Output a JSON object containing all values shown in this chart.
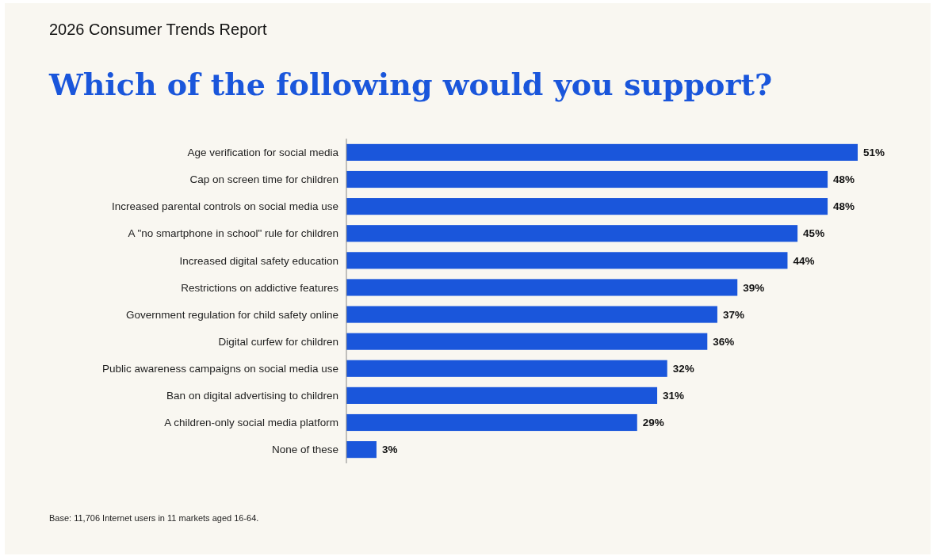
{
  "chart_data": {
    "type": "bar",
    "orientation": "horizontal",
    "subtitle": "2026 Consumer Trends Report",
    "title": "Which of the following would you support?",
    "categories": [
      "Age verification for social media",
      "Cap on screen time for children",
      "Increased parental controls on social media use",
      "A \"no smartphone in school\" rule for children",
      "Increased digital safety education",
      "Restrictions on addictive features",
      "Government regulation for child safety online",
      "Digital curfew for children",
      "Public awareness campaigns on social media use",
      "Ban on digital advertising to children",
      "A children-only social media platform",
      "None of these"
    ],
    "values": [
      51,
      48,
      48,
      45,
      44,
      39,
      37,
      36,
      32,
      31,
      29,
      3
    ],
    "value_labels": [
      "51%",
      "48%",
      "48%",
      "45%",
      "44%",
      "39%",
      "37%",
      "36%",
      "32%",
      "31%",
      "29%",
      "3%"
    ],
    "color": "#1a56db",
    "annotations": [
      "Base: 11,706 Internet users in 11 markets aged 16-64."
    ]
  }
}
